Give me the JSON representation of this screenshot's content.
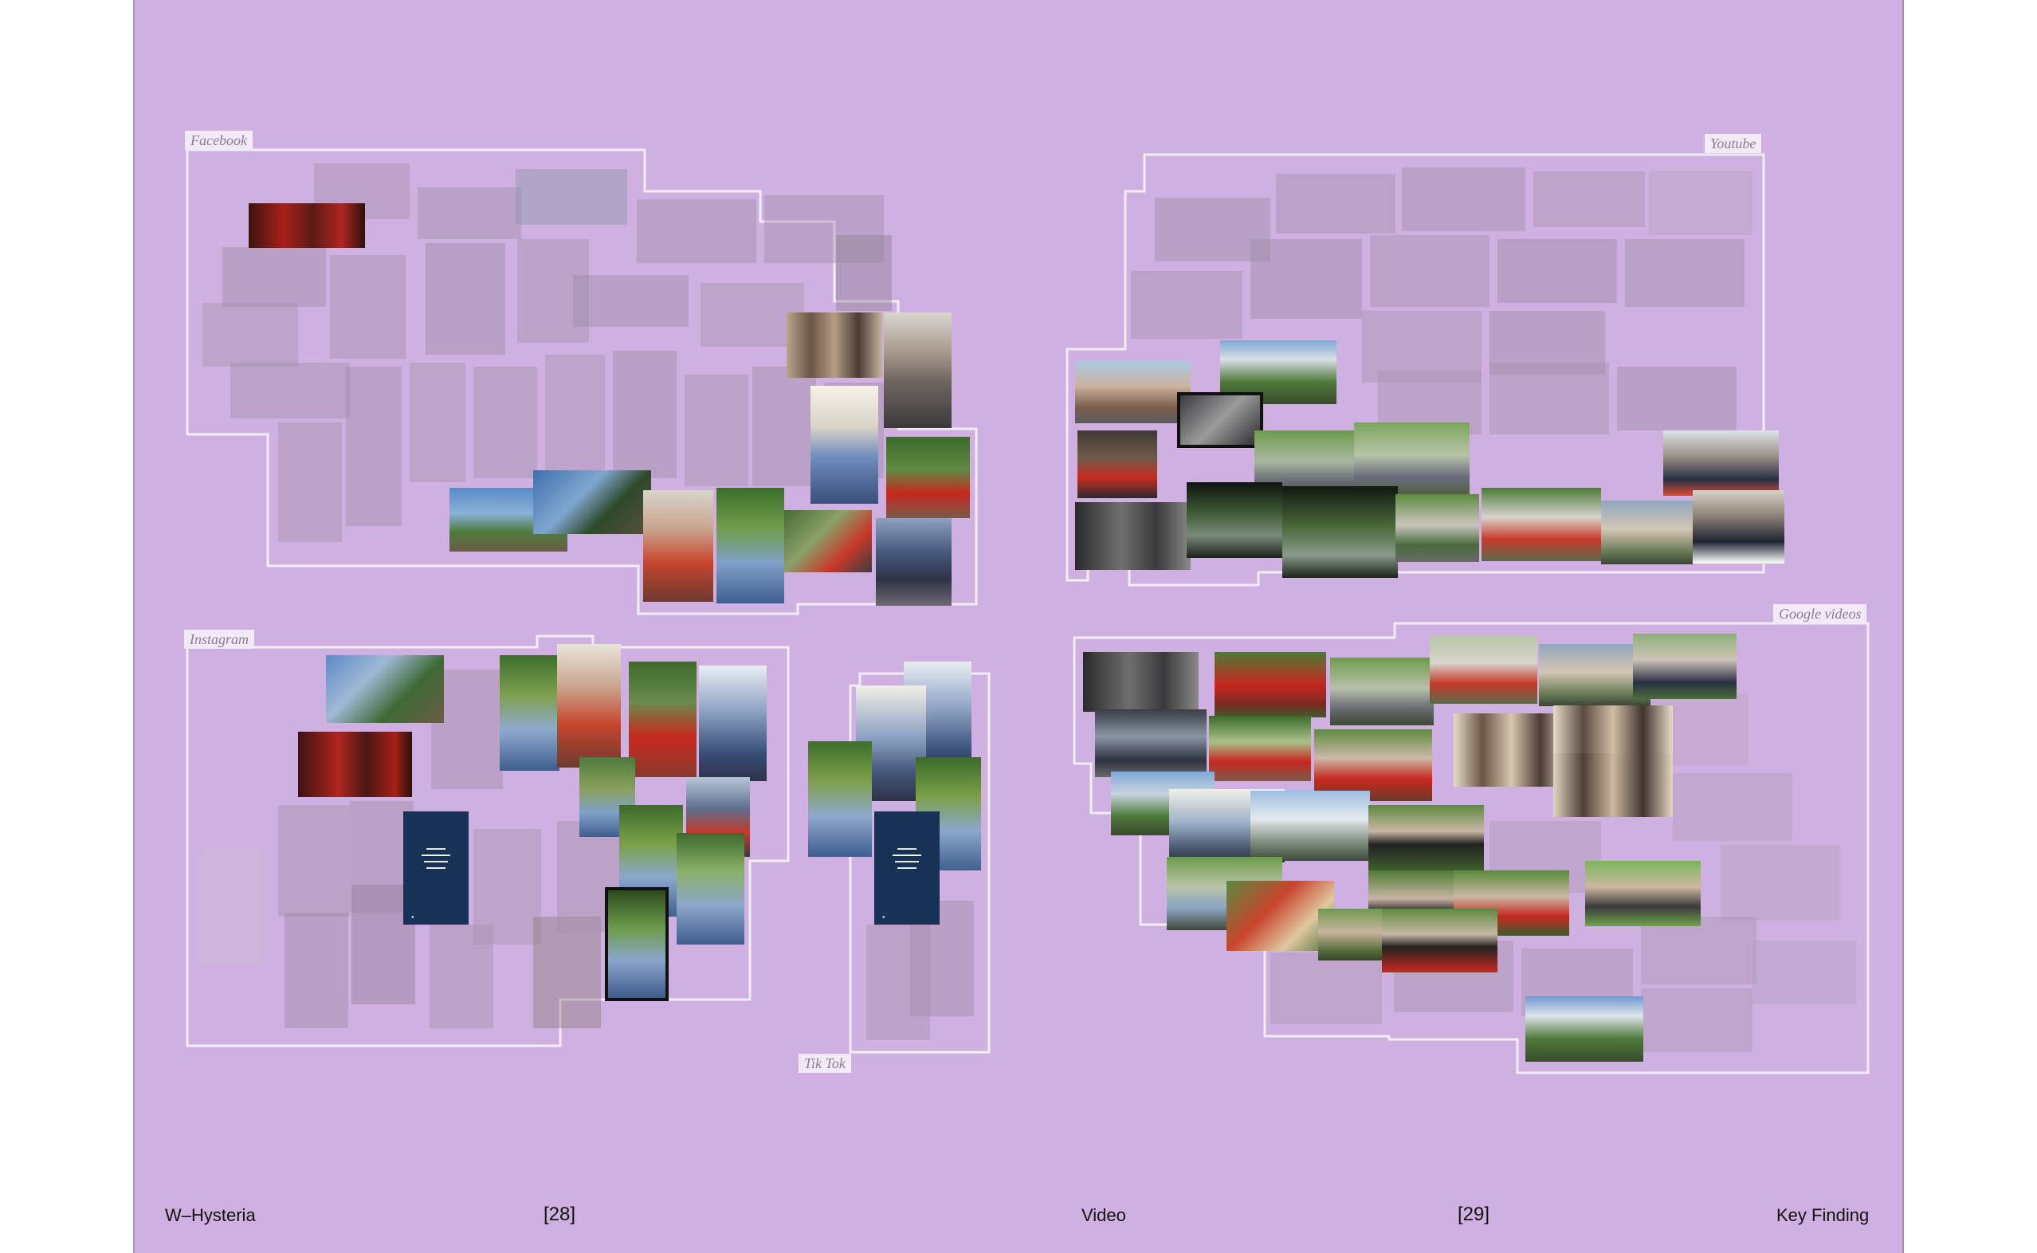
{
  "regions": {
    "facebook": "Facebook",
    "youtube": "Youtube",
    "instagram": "Instagram",
    "tiktok": "Tik Tok",
    "google_videos": "Google videos"
  },
  "footer": {
    "left_title": "W–Hysteria",
    "left_page": "[28]",
    "center_title": "Video",
    "right_page": "[29]",
    "right_title": "Key Finding"
  }
}
